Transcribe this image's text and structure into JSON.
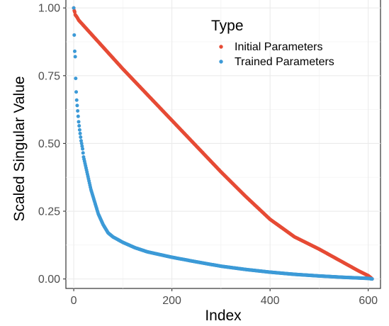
{
  "chart_data": {
    "type": "scatter",
    "title": "",
    "xlabel": "Index",
    "ylabel": "Scaled Singular Value",
    "xlim": [
      -16,
      625
    ],
    "ylim": [
      -0.035,
      1.045
    ],
    "xticks": [
      0,
      200,
      400,
      600
    ],
    "xtick_labels": [
      "0",
      "200",
      "400",
      "600"
    ],
    "yticks": [
      0.0,
      0.25,
      0.5,
      0.75,
      1.0
    ],
    "ytick_labels": [
      "0.00",
      "0.25",
      "0.50",
      "0.75",
      "1.00"
    ],
    "grid": true,
    "legend": {
      "title": "Type",
      "placement": "top-right, inside plot"
    },
    "series": [
      {
        "name": "Initial Parameters",
        "color": "#E64B35",
        "x": [
          0,
          1,
          2,
          3,
          5,
          7,
          10,
          15,
          20,
          30,
          40,
          50,
          75,
          100,
          150,
          200,
          250,
          300,
          350,
          400,
          450,
          500,
          550,
          580,
          600,
          605,
          608
        ],
        "y": [
          1.0,
          0.99,
          0.985,
          0.975,
          0.97,
          0.965,
          0.955,
          0.945,
          0.935,
          0.915,
          0.895,
          0.875,
          0.825,
          0.775,
          0.68,
          0.585,
          0.49,
          0.395,
          0.305,
          0.22,
          0.155,
          0.11,
          0.06,
          0.03,
          0.012,
          0.005,
          0.0
        ]
      },
      {
        "name": "Trained Parameters",
        "color": "#3C9AD7",
        "x": [
          0,
          1,
          2,
          3,
          4,
          5,
          6,
          8,
          10,
          12,
          15,
          18,
          20,
          25,
          30,
          35,
          40,
          45,
          50,
          60,
          70,
          80,
          90,
          100,
          125,
          150,
          175,
          200,
          250,
          300,
          350,
          400,
          450,
          500,
          550,
          600,
          608
        ],
        "y": [
          1.0,
          0.9,
          0.84,
          0.82,
          0.74,
          0.69,
          0.66,
          0.62,
          0.58,
          0.55,
          0.51,
          0.48,
          0.45,
          0.41,
          0.37,
          0.33,
          0.3,
          0.27,
          0.24,
          0.2,
          0.17,
          0.155,
          0.145,
          0.135,
          0.115,
          0.1,
          0.09,
          0.08,
          0.063,
          0.047,
          0.035,
          0.025,
          0.017,
          0.011,
          0.006,
          0.002,
          0.0
        ]
      }
    ]
  }
}
